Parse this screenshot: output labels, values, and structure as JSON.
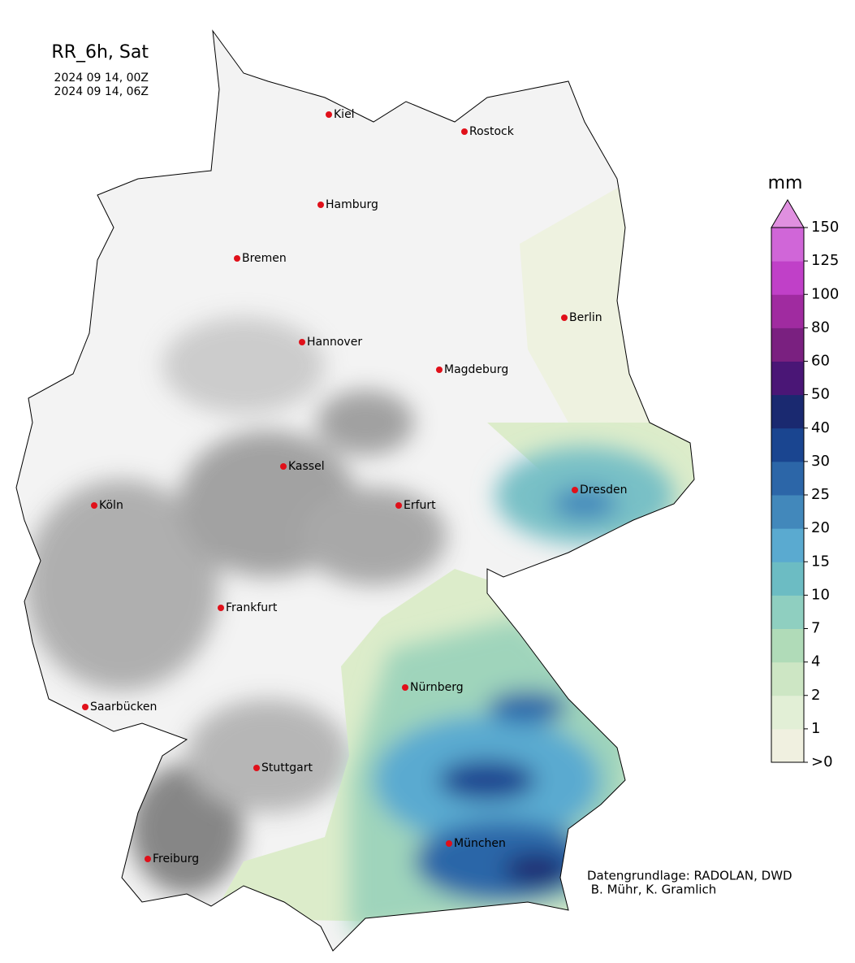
{
  "title": "RR_6h, Sat",
  "valid_from": "2024 09 14, 00Z",
  "valid_to": "2024 09 14, 06Z",
  "cities": [
    "Kiel",
    "Rostock",
    "Hamburg",
    "Bremen",
    "Berlin",
    "Hannover",
    "Magdeburg",
    "Kassel",
    "Dresden",
    "Köln",
    "Erfurt",
    "Frankfurt",
    "Nürnberg",
    "Saarbücken",
    "Stuttgart",
    "Freiburg",
    "München"
  ],
  "colorbar": {
    "unit": "mm",
    "ticks": [
      {
        "value": 0,
        "label": ">0"
      },
      1,
      2,
      4,
      7,
      10,
      15,
      20,
      25,
      30,
      40,
      50,
      60,
      80,
      100,
      125,
      150
    ],
    "colors": [
      "#f0f0e0",
      "#e2efd6",
      "#cde6c4",
      "#b0dbb8",
      "#8fcfc0",
      "#6cbcc3",
      "#5aaad0",
      "#4288bb",
      "#2c66a8",
      "#1a4590",
      "#1a2970",
      "#4a1676",
      "#7a2080",
      "#a02ba0",
      "#c040c8",
      "#d066d8"
    ],
    "extend_color": "#e090e0"
  },
  "credits": [
    "Datengrundlage: RADOLAN, DWD",
    " B. Mühr, K. Gramlich"
  ]
}
